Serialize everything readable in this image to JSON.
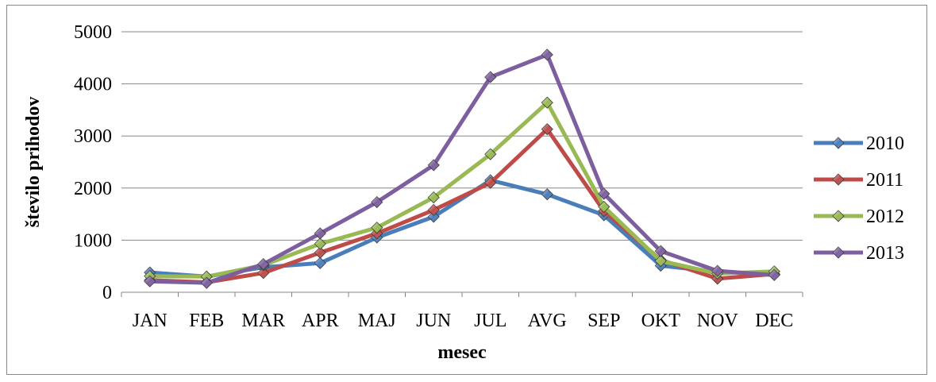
{
  "chart_data": {
    "type": "line",
    "title": "",
    "xlabel": "mesec",
    "ylabel": "število prihodov",
    "categories": [
      "JAN",
      "FEB",
      "MAR",
      "APR",
      "MAJ",
      "JUN",
      "JUL",
      "AVG",
      "SEP",
      "OKT",
      "NOV",
      "DEC"
    ],
    "ylim": [
      0,
      5000
    ],
    "yticks": [
      0,
      1000,
      2000,
      3000,
      4000,
      5000
    ],
    "grid": true,
    "legend_position": "right",
    "series": [
      {
        "name": "2010",
        "color": "#4a7ebb",
        "values": [
          380,
          300,
          480,
          560,
          1050,
          1450,
          2150,
          1880,
          1480,
          510,
          390,
          340
        ]
      },
      {
        "name": "2011",
        "color": "#be4b48",
        "values": [
          230,
          190,
          370,
          760,
          1130,
          1580,
          2100,
          3130,
          1560,
          620,
          260,
          350
        ]
      },
      {
        "name": "2012",
        "color": "#98b954",
        "values": [
          310,
          300,
          520,
          930,
          1240,
          1820,
          2650,
          3640,
          1640,
          600,
          360,
          400
        ]
      },
      {
        "name": "2013",
        "color": "#7d5fa0",
        "values": [
          210,
          180,
          540,
          1130,
          1730,
          2440,
          4130,
          4560,
          1890,
          790,
          410,
          330
        ]
      }
    ]
  }
}
